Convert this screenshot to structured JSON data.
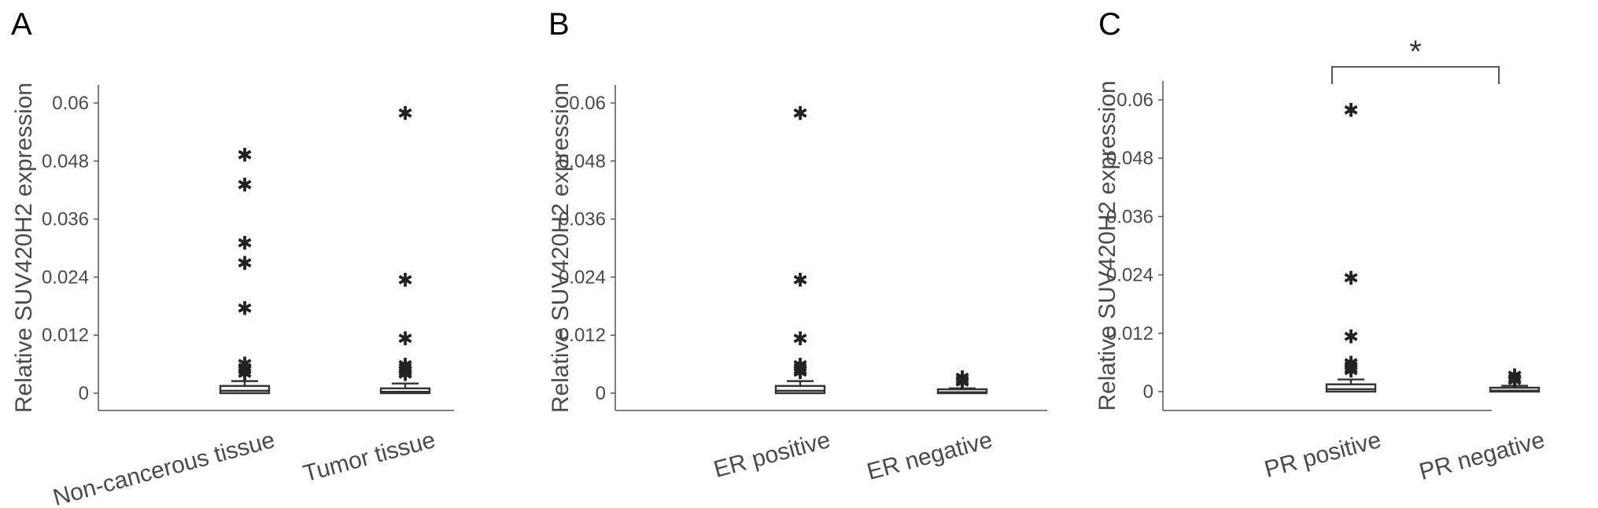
{
  "chart_data": [
    {
      "type": "box",
      "panel_label": "A",
      "ylabel": "Relative SUV420H2 expression",
      "yticks": [
        "0",
        "0.012",
        "0.024",
        "0.036",
        "0.048",
        "0.06"
      ],
      "ylim": [
        -0.0035,
        0.0635
      ],
      "categories": [
        "Non-cancerous tissue",
        "Tumor tissue"
      ],
      "boxes": [
        {
          "name": "Non-cancerous tissue",
          "min": 0.0,
          "q1": 0.0,
          "median": 0.0005,
          "q3": 0.0015,
          "max": 0.0025,
          "outliers": [
            0.0492,
            0.043,
            0.031,
            0.0268,
            0.0175,
            0.006,
            0.0052,
            0.0046,
            0.004
          ]
        },
        {
          "name": "Tumor tissue",
          "min": 0.0,
          "q1": 0.0,
          "median": 0.0003,
          "q3": 0.001,
          "max": 0.002,
          "outliers": [
            0.0578,
            0.0233,
            0.0112,
            0.0058,
            0.0052,
            0.0046,
            0.0042,
            0.0038
          ]
        }
      ],
      "significance": null
    },
    {
      "type": "box",
      "panel_label": "B",
      "ylabel": "Relative SUV420H2 expression",
      "yticks": [
        "0",
        "0.012",
        "0.024",
        "0.036",
        "0.048",
        "0.06"
      ],
      "ylim": [
        -0.0035,
        0.0635
      ],
      "categories": [
        "ER positive",
        "ER negative"
      ],
      "boxes": [
        {
          "name": "ER positive",
          "min": 0.0,
          "q1": 0.0,
          "median": 0.0005,
          "q3": 0.0015,
          "max": 0.0025,
          "outliers": [
            0.0578,
            0.0233,
            0.0112,
            0.0058,
            0.0052,
            0.0046,
            0.0042
          ]
        },
        {
          "name": "ER negative",
          "min": 0.0,
          "q1": 0.0,
          "median": 0.0002,
          "q3": 0.0006,
          "max": 0.001,
          "outliers": [
            0.0032,
            0.0026,
            0.0022
          ]
        }
      ],
      "significance": null
    },
    {
      "type": "box",
      "panel_label": "C",
      "ylabel": "Relative SUV420H2 expression",
      "yticks": [
        "0",
        "0.012",
        "0.024",
        "0.036",
        "0.048",
        "0.06"
      ],
      "ylim": [
        -0.0035,
        0.063
      ],
      "categories": [
        "PR positive",
        "PR negative"
      ],
      "boxes": [
        {
          "name": "PR positive",
          "min": 0.0,
          "q1": 0.0,
          "median": 0.0005,
          "q3": 0.0015,
          "max": 0.0025,
          "outliers": [
            0.0578,
            0.0233,
            0.0112,
            0.0058,
            0.0052,
            0.0046,
            0.0042
          ]
        },
        {
          "name": "PR negative",
          "min": 0.0,
          "q1": 0.0,
          "median": 0.0002,
          "q3": 0.0006,
          "max": 0.0012,
          "outliers": [
            0.0032,
            0.0026,
            0.0022
          ]
        }
      ],
      "significance": {
        "between": [
          "PR positive",
          "PR negative"
        ],
        "label": "*"
      }
    }
  ]
}
